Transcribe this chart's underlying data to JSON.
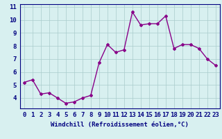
{
  "x": [
    0,
    1,
    2,
    3,
    4,
    5,
    6,
    7,
    8,
    9,
    10,
    11,
    12,
    13,
    14,
    15,
    16,
    17,
    18,
    19,
    20,
    21,
    22,
    23
  ],
  "y": [
    5.2,
    5.4,
    4.3,
    4.4,
    4.0,
    3.6,
    3.7,
    4.0,
    4.2,
    6.7,
    8.1,
    7.5,
    7.7,
    10.6,
    9.6,
    9.7,
    9.7,
    10.3,
    7.8,
    8.1,
    8.1,
    7.8,
    7.0,
    6.5
  ],
  "line_color": "#880088",
  "marker": "D",
  "marker_size": 2,
  "bg_color": "#d8f0f0",
  "grid_color": "#aacccc",
  "xlabel": "Windchill (Refroidissement éolien,°C)",
  "ylim": [
    3.2,
    11.2
  ],
  "xlim": [
    -0.5,
    23.5
  ],
  "yticks": [
    4,
    5,
    6,
    7,
    8,
    9,
    10,
    11
  ],
  "xticks": [
    0,
    1,
    2,
    3,
    4,
    5,
    6,
    7,
    8,
    9,
    10,
    11,
    12,
    13,
    14,
    15,
    16,
    17,
    18,
    19,
    20,
    21,
    22,
    23
  ],
  "xlabel_fontsize": 6.5,
  "tick_fontsize": 6.5,
  "line_width": 1.0,
  "label_color": "#000080",
  "spine_color": "#000080"
}
